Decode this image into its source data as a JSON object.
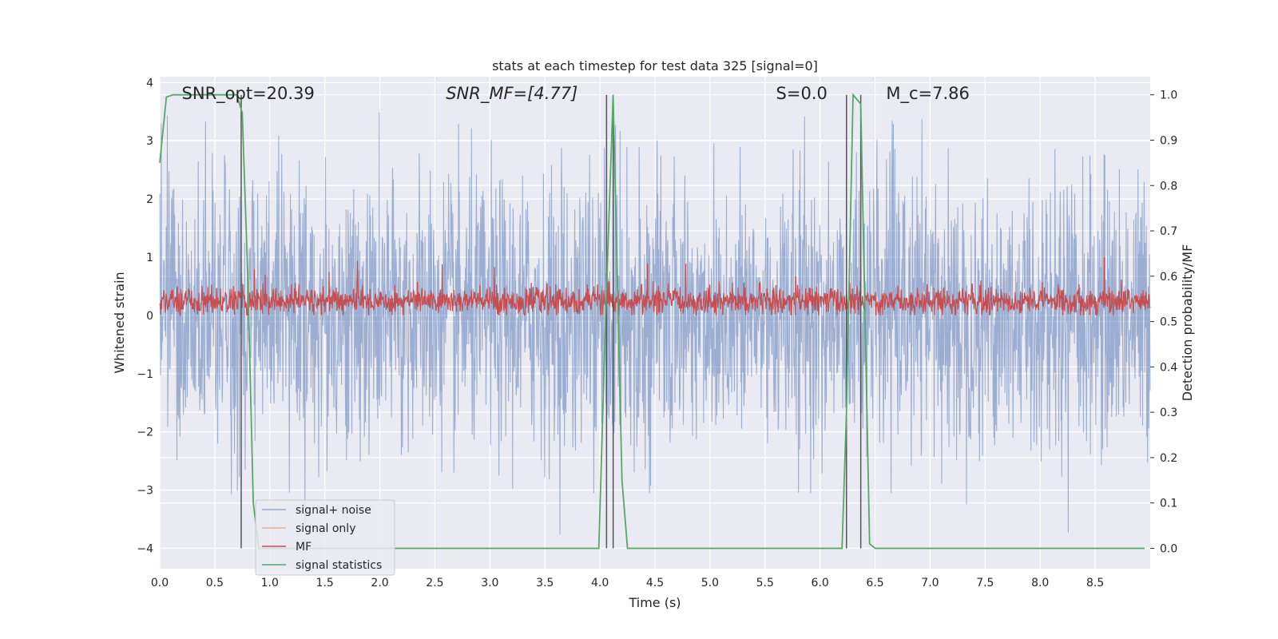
{
  "chart_data": {
    "type": "line",
    "title": "stats at each timestep for test data 325 [signal=0]",
    "xlabel": "Time (s)",
    "ylabel": "Whitened strain",
    "ylabel_right": "Detection probability/MF",
    "xlim": [
      0,
      9.0
    ],
    "ylim": [
      -4.35,
      4.1
    ],
    "ylim_right": [
      -0.045,
      1.04
    ],
    "x_ticks": [
      0.0,
      0.5,
      1.0,
      1.5,
      2.0,
      2.5,
      3.0,
      3.5,
      4.0,
      4.5,
      5.0,
      5.5,
      6.0,
      6.5,
      7.0,
      7.5,
      8.0,
      8.5
    ],
    "y_ticks": [
      -4,
      -3,
      -2,
      -1,
      0,
      1,
      2,
      3,
      4
    ],
    "y_ticks_right": [
      0.0,
      0.1,
      0.2,
      0.3,
      0.4,
      0.5,
      0.6,
      0.7,
      0.8,
      0.9,
      1.0
    ],
    "grid": true,
    "legend_position": "bottom-left",
    "annotations": [
      {
        "text": "SNR_opt=20.39",
        "x": 0.2
      },
      {
        "text": "SNR_MF=[4.77]",
        "x": 2.6
      },
      {
        "text": "S=0.0",
        "x": 5.6
      },
      {
        "text": "M_c=7.86",
        "x": 6.6
      }
    ],
    "series": [
      {
        "name": "signal+ noise",
        "color": "#4c72b0",
        "kind": "noise",
        "amplitude_envelope": [
          -3.8,
          3.5
        ]
      },
      {
        "name": "signal only",
        "color": "#dd8452",
        "kind": "flat",
        "values": []
      },
      {
        "name": "MF",
        "color": "#c44e52",
        "kind": "noise",
        "range": [
          0.0,
          1.0
        ],
        "axis": "left"
      },
      {
        "name": "signal statistics",
        "color": "#55a868",
        "axis": "right",
        "x": [
          0.0,
          0.06,
          0.12,
          0.2,
          0.3,
          0.4,
          0.5,
          0.55,
          0.6,
          0.65,
          0.7,
          0.75,
          0.8,
          0.85,
          0.9,
          1.0,
          2.0,
          3.0,
          3.99,
          4.05,
          4.12,
          4.2,
          4.25,
          5.0,
          6.0,
          6.2,
          6.24,
          6.3,
          6.37,
          6.45,
          6.5,
          7.0,
          8.0,
          8.95
        ],
        "values": [
          0.85,
          0.995,
          1.0,
          1.0,
          1.0,
          1.0,
          1.0,
          1.0,
          1.0,
          1.0,
          1.0,
          0.96,
          0.6,
          0.1,
          0.0,
          0.0,
          0.0,
          0.0,
          0.0,
          0.5,
          1.0,
          0.15,
          0.0,
          0.0,
          0.0,
          0.0,
          0.3,
          1.0,
          0.98,
          0.01,
          0.0,
          0.0,
          0.0,
          0.0
        ]
      }
    ],
    "vertical_lines": [
      {
        "x": 0.74,
        "color": "#555555",
        "top": 1.0
      },
      {
        "x": 4.06,
        "color": "#555555",
        "top": 1.0
      },
      {
        "x": 4.12,
        "color": "#555555",
        "top": 1.0
      },
      {
        "x": 6.24,
        "color": "#555555",
        "top": 1.0
      },
      {
        "x": 6.37,
        "color": "#555555",
        "top": 1.0
      }
    ]
  }
}
